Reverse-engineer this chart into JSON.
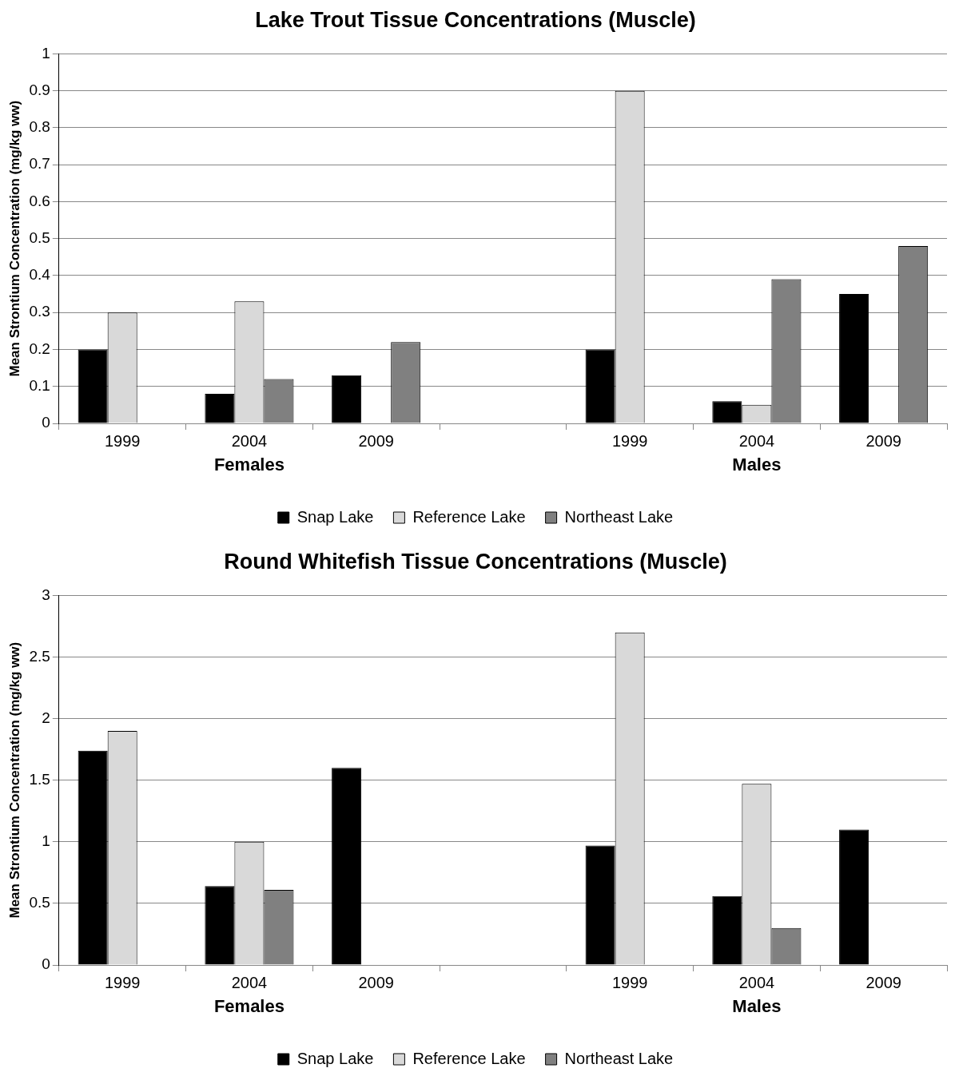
{
  "chart_data": [
    {
      "type": "bar",
      "title": "Lake Trout Tissue Concentrations (Muscle)",
      "ylabel": "Mean Strontium Concentration (mg/kg ww)",
      "categories": [
        "1999",
        "2004",
        "2009",
        null,
        "1999",
        "2004",
        "2009"
      ],
      "series": [
        {
          "name": "Snap Lake",
          "color": "#000000",
          "values": [
            0.2,
            0.08,
            0.13,
            null,
            0.2,
            0.06,
            0.35
          ]
        },
        {
          "name": "Reference Lake",
          "color": "#d9d9d9",
          "values": [
            0.3,
            0.33,
            null,
            null,
            0.9,
            0.05,
            null
          ]
        },
        {
          "name": "Northeast Lake",
          "color": "#808080",
          "values": [
            null,
            0.12,
            0.22,
            null,
            null,
            0.39,
            0.48
          ]
        }
      ],
      "ylim": [
        0,
        1
      ],
      "yticks": [
        0,
        0.1,
        0.2,
        0.3,
        0.4,
        0.5,
        0.6,
        0.7,
        0.8,
        0.9,
        1
      ],
      "grid": "y",
      "legend": "bottom",
      "annotations": [
        "Females",
        "Males"
      ]
    },
    {
      "type": "bar",
      "title": "Round Whitefish Tissue Concentrations (Muscle)",
      "ylabel": "Mean Strontium Concentration (mg/kg ww)",
      "categories": [
        "1999",
        "2004",
        "2009",
        null,
        "1999",
        "2004",
        "2009"
      ],
      "series": [
        {
          "name": "Snap Lake",
          "color": "#000000",
          "values": [
            1.74,
            0.64,
            1.6,
            null,
            0.97,
            0.56,
            1.1
          ]
        },
        {
          "name": "Reference Lake",
          "color": "#d9d9d9",
          "values": [
            1.9,
            1.0,
            null,
            null,
            2.7,
            1.47,
            null
          ]
        },
        {
          "name": "Northeast Lake",
          "color": "#808080",
          "values": [
            null,
            0.61,
            null,
            null,
            null,
            0.3,
            null
          ]
        }
      ],
      "ylim": [
        0,
        3
      ],
      "yticks": [
        0,
        0.5,
        1,
        1.5,
        2,
        2.5,
        3
      ],
      "grid": "y",
      "legend": "bottom",
      "annotations": [
        "Females",
        "Males"
      ]
    }
  ]
}
